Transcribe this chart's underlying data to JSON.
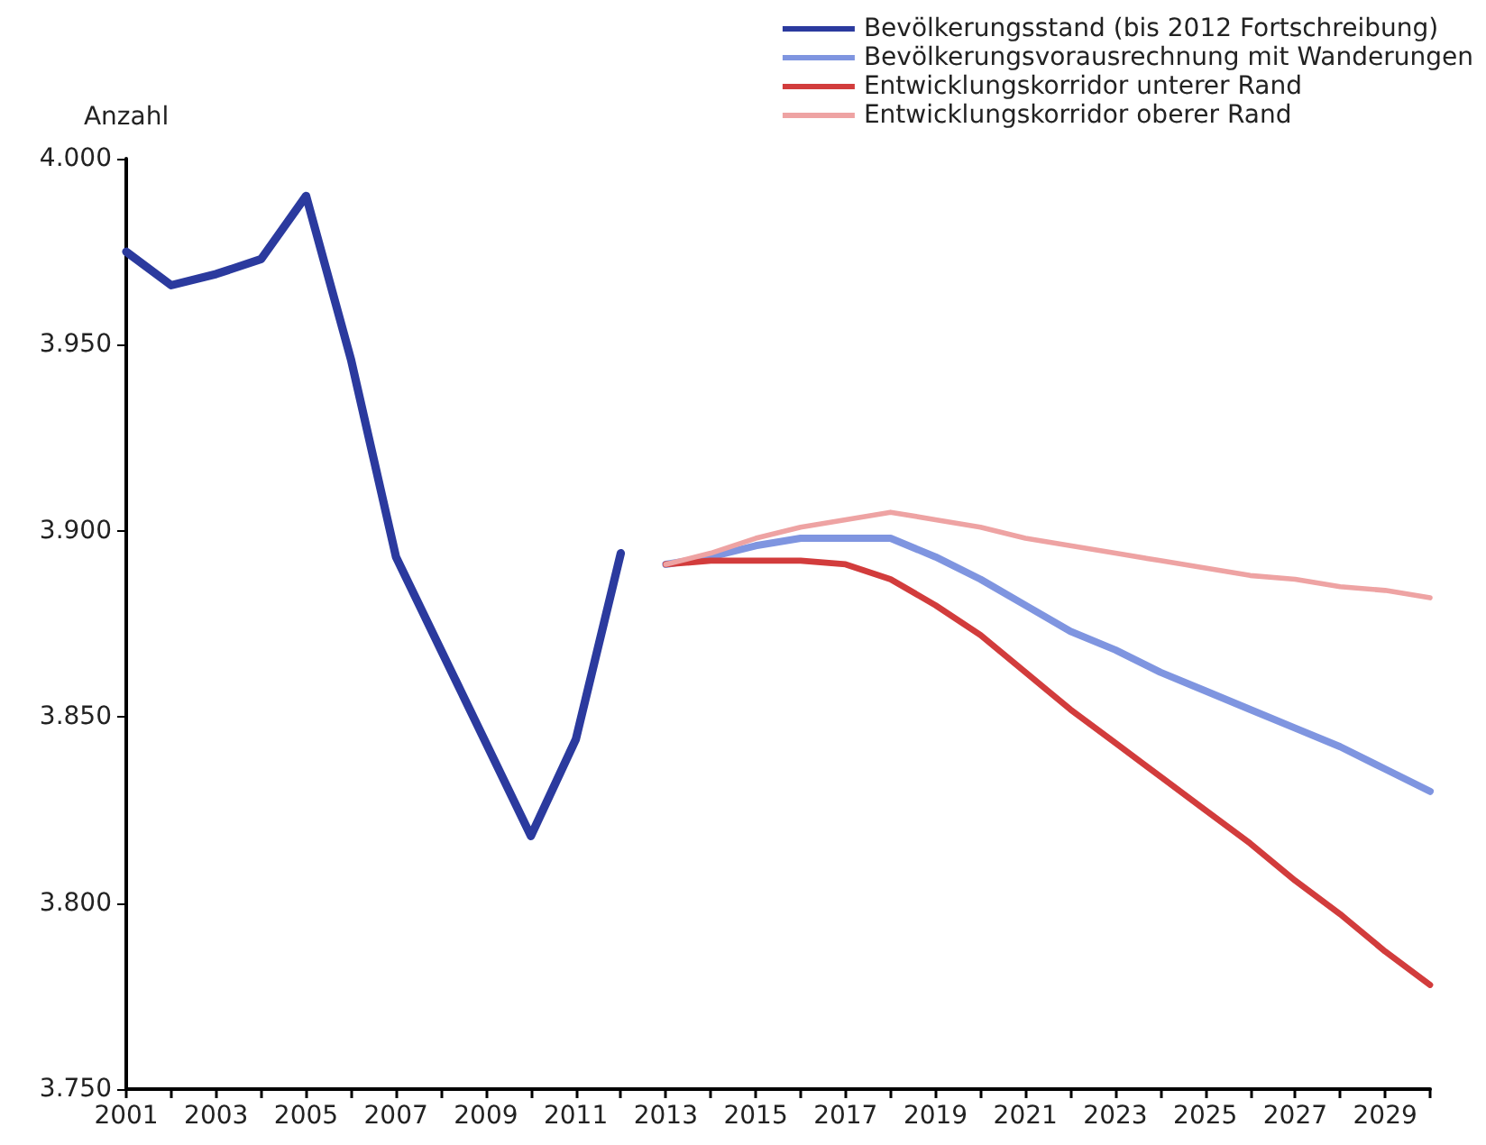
{
  "chart_data": {
    "type": "line",
    "ylabel": "Anzahl",
    "categories": [
      "2001",
      null,
      "2003",
      null,
      "2005",
      null,
      "2007",
      null,
      "2009",
      null,
      "2011",
      null,
      "2013",
      null,
      "2015",
      null,
      "2017",
      null,
      "2019",
      null,
      "2021",
      null,
      "2023",
      null,
      "2025",
      null,
      "2027",
      null,
      "2029",
      null
    ],
    "series": [
      {
        "name": "Bevölkerungsstand (bis 2012 Fortschreibung)",
        "color": "#2b3a9e",
        "values": [
          3975,
          3966,
          3969,
          3973,
          3990,
          3946,
          3893,
          3868,
          3843,
          3818,
          3844,
          3894,
          null,
          null,
          null,
          null,
          null,
          null,
          null,
          null,
          null,
          null,
          null,
          null,
          null,
          null,
          null,
          null,
          null,
          null
        ]
      },
      {
        "name": "Bevölkerungsvorausrechnung mit Wanderungen",
        "color": "#7f95e0",
        "values": [
          null,
          null,
          null,
          null,
          null,
          null,
          null,
          null,
          null,
          null,
          null,
          null,
          3891,
          3893,
          3896,
          3898,
          3898,
          3898,
          3893,
          3887,
          3880,
          3873,
          3868,
          3862,
          3857,
          3852,
          3847,
          3842,
          3836,
          3830
        ]
      },
      {
        "name": "Entwicklungskorridor unterer Rand",
        "color": "#d23c3c",
        "values": [
          null,
          null,
          null,
          null,
          null,
          null,
          null,
          null,
          null,
          null,
          null,
          null,
          3891,
          3892,
          3892,
          3892,
          3891,
          3887,
          3880,
          3872,
          3862,
          3852,
          3843,
          3834,
          3825,
          3816,
          3806,
          3797,
          3787,
          3778
        ]
      },
      {
        "name": "Entwicklungskorridor oberer Rand",
        "color": "#eea3a3",
        "values": [
          null,
          null,
          null,
          null,
          null,
          null,
          null,
          null,
          null,
          null,
          null,
          null,
          3891,
          3894,
          3898,
          3901,
          3903,
          3905,
          3903,
          3901,
          3898,
          3896,
          3894,
          3892,
          3890,
          3888,
          3887,
          3885,
          3884,
          3882
        ]
      }
    ],
    "ylim": [
      3750,
      4000
    ],
    "yticks": [
      {
        "value": 3750,
        "label": "3.750"
      },
      {
        "value": 3800,
        "label": "3.800"
      },
      {
        "value": 3850,
        "label": "3.850"
      },
      {
        "value": 3900,
        "label": "3.900"
      },
      {
        "value": 3950,
        "label": "3.950"
      },
      {
        "value": 4000,
        "label": "4.000"
      }
    ],
    "grid": false,
    "legend": "top right",
    "marker": "none",
    "line_style": "solid"
  }
}
